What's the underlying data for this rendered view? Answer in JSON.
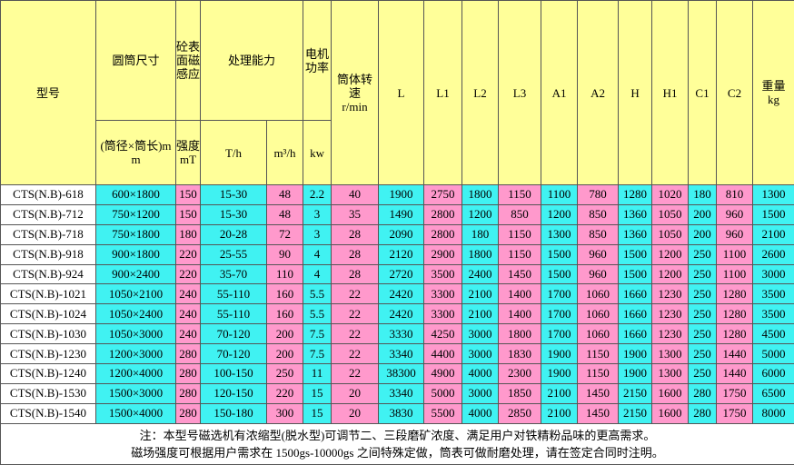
{
  "header": {
    "row1": [
      {
        "label": "型号"
      },
      {
        "label": "圆筒尺寸"
      },
      {
        "label": "砼表面磁感应"
      },
      {
        "label": "处理能力"
      },
      {
        "label": "电机功率"
      },
      {
        "label": "筒体转速",
        "unit": "r/min"
      },
      {
        "label": "L"
      },
      {
        "label": "L1"
      },
      {
        "label": "L2"
      },
      {
        "label": "L3"
      },
      {
        "label": "A1"
      },
      {
        "label": "A2"
      },
      {
        "label": "H"
      },
      {
        "label": "H1"
      },
      {
        "label": "C1"
      },
      {
        "label": "C2"
      },
      {
        "label": "重量",
        "unit": "kg"
      }
    ],
    "row2": [
      "(筒径×筒长)mm",
      "强度mT",
      "T/h",
      "m³/h",
      "kw"
    ]
  },
  "rows": [
    [
      "CTS(N.B)-618",
      "600×1800",
      "150",
      "15-30",
      "48",
      "2.2",
      "40",
      "1900",
      "2750",
      "1800",
      "1150",
      "1100",
      "780",
      "1280",
      "1020",
      "180",
      "810",
      "1300"
    ],
    [
      "CTS(N.B)-712",
      "750×1200",
      "150",
      "15-30",
      "48",
      "3",
      "35",
      "1490",
      "2800",
      "1200",
      "850",
      "1200",
      "850",
      "1360",
      "1050",
      "200",
      "960",
      "1500"
    ],
    [
      "CTS(N.B)-718",
      "750×1800",
      "180",
      "20-28",
      "72",
      "3",
      "28",
      "2090",
      "2800",
      "180",
      "1150",
      "1300",
      "850",
      "1360",
      "1050",
      "200",
      "960",
      "2100"
    ],
    [
      "CTS(N.B)-918",
      "900×1800",
      "220",
      "25-55",
      "90",
      "4",
      "28",
      "2120",
      "2900",
      "1800",
      "1150",
      "1500",
      "960",
      "1500",
      "1200",
      "250",
      "1100",
      "2600"
    ],
    [
      "CTS(N.B)-924",
      "900×2400",
      "220",
      "35-70",
      "110",
      "4",
      "28",
      "2720",
      "3500",
      "2400",
      "1450",
      "1500",
      "960",
      "1500",
      "1200",
      "250",
      "1100",
      "3000"
    ],
    [
      "CTS(N.B)-1021",
      "1050×2100",
      "240",
      "55-110",
      "160",
      "5.5",
      "22",
      "2420",
      "3300",
      "2100",
      "1400",
      "1700",
      "1060",
      "1660",
      "1230",
      "250",
      "1280",
      "3500"
    ],
    [
      "CTS(N.B)-1024",
      "1050×2400",
      "240",
      "55-110",
      "160",
      "5.5",
      "22",
      "2420",
      "3300",
      "2100",
      "1400",
      "1700",
      "1060",
      "1660",
      "1230",
      "250",
      "1280",
      "3500"
    ],
    [
      "CTS(N.B)-1030",
      "1050×3000",
      "240",
      "70-120",
      "200",
      "7.5",
      "22",
      "3330",
      "4250",
      "3000",
      "1800",
      "1700",
      "1060",
      "1660",
      "1230",
      "250",
      "1280",
      "4500"
    ],
    [
      "CTS(N.B)-1230",
      "1200×3000",
      "280",
      "70-120",
      "200",
      "7.5",
      "22",
      "3340",
      "4400",
      "3000",
      "1830",
      "1900",
      "1150",
      "1900",
      "1300",
      "250",
      "1440",
      "5000"
    ],
    [
      "CTS(N.B)-1240",
      "1200×4000",
      "280",
      "100-150",
      "250",
      "11",
      "22",
      "38300",
      "4900",
      "4000",
      "2300",
      "1900",
      "1150",
      "1900",
      "1300",
      "250",
      "1440",
      "6000"
    ],
    [
      "CTS(N.B)-1530",
      "1500×3000",
      "280",
      "120-150",
      "220",
      "15",
      "20",
      "3340",
      "5000",
      "3000",
      "1850",
      "2100",
      "1450",
      "2150",
      "1600",
      "280",
      "1750",
      "6500"
    ],
    [
      "CTS(N.B)-1540",
      "1500×4000",
      "280",
      "150-180",
      "300",
      "15",
      "20",
      "3830",
      "5500",
      "4000",
      "2850",
      "2100",
      "1450",
      "2150",
      "1600",
      "280",
      "1750",
      "8000"
    ]
  ],
  "notes": [
    "注：本型号磁选机有浓缩型(脱水型)可调节二、三段磨矿浓度、满足用户对铁精粉品味的更高需求。",
    "磁场强度可根据用户需求在 1500gs-10000gs 之间特殊定做，筒表可做耐磨处理，请在签定合同时注明。"
  ]
}
